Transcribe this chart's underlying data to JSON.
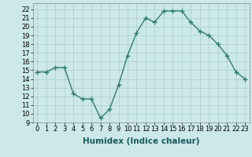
{
  "x": [
    0,
    1,
    2,
    3,
    4,
    5,
    6,
    7,
    8,
    9,
    10,
    11,
    12,
    13,
    14,
    15,
    16,
    17,
    18,
    19,
    20,
    21,
    22,
    23
  ],
  "y": [
    14.8,
    14.8,
    15.3,
    15.3,
    12.3,
    11.7,
    11.7,
    9.5,
    10.5,
    13.3,
    16.7,
    19.3,
    21.0,
    20.5,
    21.8,
    21.8,
    21.8,
    20.5,
    19.5,
    19.0,
    18.0,
    16.7,
    14.8,
    14.0
  ],
  "line_color": "#2d7d6e",
  "marker": "+",
  "marker_size": 4,
  "marker_lw": 1.0,
  "line_width": 1.0,
  "bg_color": "#cce8e8",
  "grid_color": "#aacccc",
  "xlabel": "Humidex (Indice chaleur)",
  "xlim": [
    -0.5,
    23.5
  ],
  "ylim": [
    9,
    22.7
  ],
  "yticks": [
    9,
    10,
    11,
    12,
    13,
    14,
    15,
    16,
    17,
    18,
    19,
    20,
    21,
    22
  ],
  "xticks": [
    0,
    1,
    2,
    3,
    4,
    5,
    6,
    7,
    8,
    9,
    10,
    11,
    12,
    13,
    14,
    15,
    16,
    17,
    18,
    19,
    20,
    21,
    22,
    23
  ],
  "tick_label_fontsize": 6.0,
  "xlabel_fontsize": 7.5,
  "spine_color": "#888888"
}
